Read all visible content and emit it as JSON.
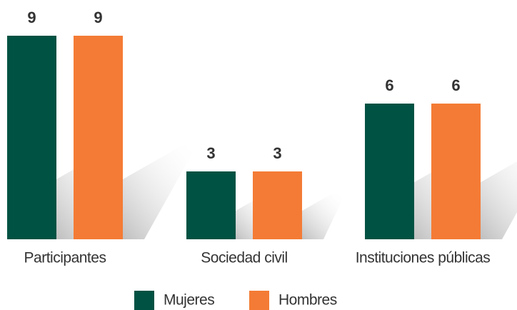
{
  "chart_data": {
    "type": "bar",
    "categories": [
      "Participantes",
      "Sociedad civil",
      "Instituciones públicas"
    ],
    "series": [
      {
        "name": "Mujeres",
        "color": "#005243",
        "values": [
          9,
          3,
          6
        ]
      },
      {
        "name": "Hombres",
        "color": "#f47b35",
        "values": [
          9,
          3,
          6
        ]
      }
    ],
    "ylim": [
      0,
      9
    ],
    "grid": false,
    "legend": "bottom"
  }
}
